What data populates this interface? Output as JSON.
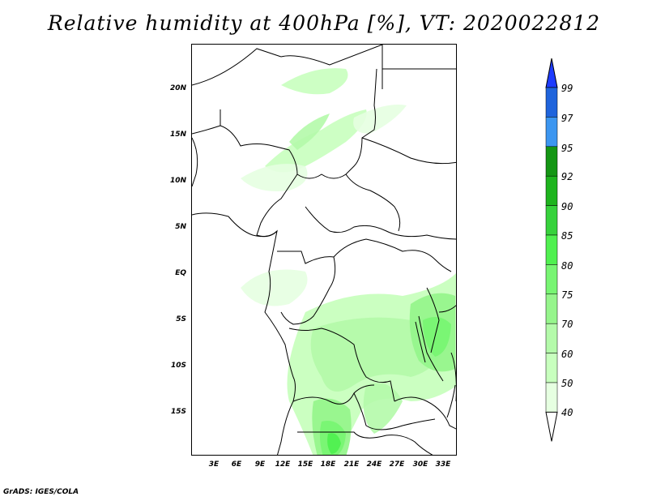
{
  "title": "Relative humidity at 400hPa [%], VT: 2020022812",
  "credit": "GrADS: IGES/COLA",
  "lat_axis": {
    "ticks": [
      {
        "label": "20N",
        "value": 20
      },
      {
        "label": "15N",
        "value": 15
      },
      {
        "label": "10N",
        "value": 10
      },
      {
        "label": "5N",
        "value": 5
      },
      {
        "label": "EQ",
        "value": 0
      },
      {
        "label": "5S",
        "value": -5
      },
      {
        "label": "10S",
        "value": -10
      },
      {
        "label": "15S",
        "value": -15
      }
    ],
    "range": [
      -19.7,
      24.9
    ]
  },
  "lon_axis": {
    "ticks": [
      {
        "label": "3E",
        "value": 3
      },
      {
        "label": "6E",
        "value": 6
      },
      {
        "label": "9E",
        "value": 9
      },
      {
        "label": "12E",
        "value": 12
      },
      {
        "label": "15E",
        "value": 15
      },
      {
        "label": "18E",
        "value": 18
      },
      {
        "label": "21E",
        "value": 21
      },
      {
        "label": "24E",
        "value": 24
      },
      {
        "label": "27E",
        "value": 27
      },
      {
        "label": "30E",
        "value": 30
      },
      {
        "label": "33E",
        "value": 33
      }
    ],
    "range": [
      0,
      34.8
    ]
  },
  "colorbar": {
    "levels": [
      {
        "label": "99",
        "color": "#1e3cff"
      },
      {
        "label": "97",
        "color": "#1f64dc"
      },
      {
        "label": "95",
        "color": "#3c96f0"
      },
      {
        "label": "92",
        "color": "#149614"
      },
      {
        "label": "90",
        "color": "#1eb41e"
      },
      {
        "label": "85",
        "color": "#37d23c"
      },
      {
        "label": "80",
        "color": "#50f050"
      },
      {
        "label": "75",
        "color": "#78f573"
      },
      {
        "label": "70",
        "color": "#96f58c"
      },
      {
        "label": "60",
        "color": "#b4faaa"
      },
      {
        "label": "50",
        "color": "#c8ffbe"
      },
      {
        "label": "40",
        "color": "#e6ffe1"
      }
    ],
    "top_arrow_color": "#1e3cff",
    "bottom_arrow_color": "#ffffff"
  }
}
